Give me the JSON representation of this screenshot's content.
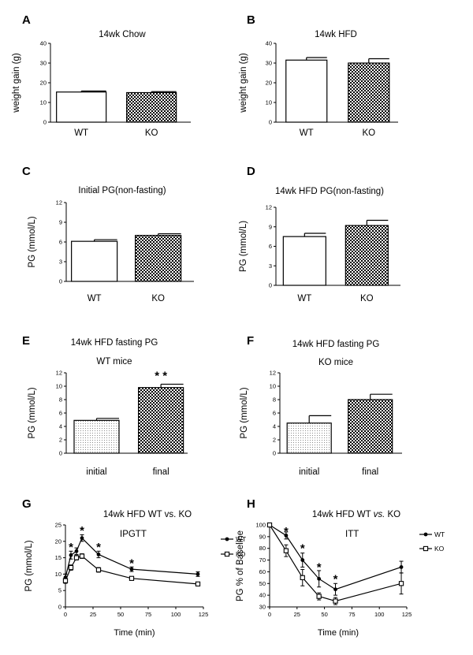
{
  "colors": {
    "axis": "#000000",
    "bar_outline": "#000000",
    "wt_fill": "#ffffff",
    "ko_fill_pattern": "checker",
    "initial_fill_pattern": "dots"
  },
  "chart_data": [
    {
      "panel": "A",
      "type": "bar",
      "title": "14wk Chow",
      "xlabel": "",
      "ylabel": "weight gain (g)",
      "categories": [
        "WT",
        "KO"
      ],
      "values": [
        15.3,
        15.0
      ],
      "errors": [
        0.5,
        0.5
      ],
      "fills": [
        "white",
        "checker"
      ],
      "ylim": [
        0,
        40
      ],
      "yticks": [
        0,
        10,
        20,
        30,
        40
      ],
      "annotations": []
    },
    {
      "panel": "B",
      "type": "bar",
      "title": "14wk HFD",
      "xlabel": "",
      "ylabel": "weight gain (g)",
      "categories": [
        "WT",
        "KO"
      ],
      "values": [
        31.5,
        30.0
      ],
      "errors": [
        1.3,
        2.2
      ],
      "fills": [
        "white",
        "checker"
      ],
      "ylim": [
        0,
        40
      ],
      "yticks": [
        0,
        10,
        20,
        30,
        40
      ],
      "annotations": []
    },
    {
      "panel": "C",
      "type": "bar",
      "title": "Initial PG(non-fasting)",
      "xlabel": "",
      "ylabel": "PG (mmol/L)",
      "categories": [
        "WT",
        "KO"
      ],
      "values": [
        6.1,
        7.0
      ],
      "errors": [
        0.25,
        0.25
      ],
      "fills": [
        "white",
        "checker"
      ],
      "ylim": [
        0,
        12
      ],
      "yticks": [
        0,
        3,
        6,
        9,
        12
      ],
      "annotations": []
    },
    {
      "panel": "D",
      "type": "bar",
      "title": "14wk HFD PG(non-fasting)",
      "xlabel": "",
      "ylabel": "PG (mmol/L)",
      "categories": [
        "WT",
        "KO"
      ],
      "values": [
        7.5,
        9.2
      ],
      "errors": [
        0.5,
        0.8
      ],
      "fills": [
        "white",
        "checker"
      ],
      "ylim": [
        0,
        12
      ],
      "yticks": [
        0,
        3,
        6,
        9,
        12
      ],
      "annotations": []
    },
    {
      "panel": "E",
      "type": "bar",
      "title": "14wk HFD fasting PG",
      "subtitle": "WT mice",
      "xlabel": "",
      "ylabel": "PG (mmol/L)",
      "categories": [
        "initial",
        "final"
      ],
      "values": [
        4.9,
        9.8
      ],
      "errors": [
        0.3,
        0.5
      ],
      "fills": [
        "dots",
        "checker"
      ],
      "ylim": [
        0,
        12
      ],
      "yticks": [
        0,
        2,
        4,
        6,
        8,
        10,
        12
      ],
      "annotations": [
        {
          "text": "* *",
          "category": "final"
        }
      ]
    },
    {
      "panel": "F",
      "type": "bar",
      "title": "14wk HFD fasting PG",
      "subtitle": "KO  mice",
      "xlabel": "",
      "ylabel": "PG (mmol/L)",
      "categories": [
        "initial",
        "final"
      ],
      "values": [
        4.5,
        8.0
      ],
      "errors": [
        1.1,
        0.8
      ],
      "fills": [
        "dots",
        "checker"
      ],
      "ylim": [
        0,
        12
      ],
      "yticks": [
        0,
        2,
        4,
        6,
        8,
        10,
        12
      ],
      "annotations": []
    },
    {
      "panel": "G",
      "type": "line",
      "title": "14wk HFD WT vs. KO",
      "title_italic": "",
      "inner_label": "IPGTT",
      "xlabel": "Time (min)",
      "ylabel": "PG (mmol/L)",
      "xlim": [
        0,
        125
      ],
      "xticks": [
        0,
        25,
        50,
        75,
        100,
        125
      ],
      "ylim": [
        0,
        25
      ],
      "yticks": [
        0,
        5,
        10,
        15,
        20,
        25
      ],
      "series": [
        {
          "name": "WT",
          "marker": "circle",
          "x": [
            0,
            5,
            10,
            15,
            30,
            60,
            120
          ],
          "y": [
            9.0,
            15.8,
            17.0,
            21.0,
            16.0,
            11.5,
            10.0
          ],
          "err": [
            1.0,
            1.2,
            1.0,
            1.0,
            1.0,
            0.7,
            0.7
          ]
        },
        {
          "name": "KO",
          "marker": "square",
          "x": [
            0,
            5,
            10,
            15,
            30,
            60,
            120
          ],
          "y": [
            8.0,
            12.0,
            15.0,
            15.5,
            11.3,
            8.7,
            7.0
          ],
          "err": [
            0.8,
            0.8,
            0.7,
            0.7,
            0.7,
            0.5,
            0.4
          ]
        }
      ],
      "stars": [
        {
          "x": 5,
          "y": 18.3
        },
        {
          "x": 15,
          "y": 23.3
        },
        {
          "x": 30,
          "y": 18.3
        },
        {
          "x": 60,
          "y": 13.3
        }
      ],
      "star_text": "*"
    },
    {
      "panel": "H",
      "type": "line",
      "title": "14wk HFD WT ",
      "title_italic": "vs.",
      "title_tail": " KO",
      "inner_label": "ITT",
      "xlabel": "Time (min)",
      "ylabel": "PG % of Baseline",
      "xlim": [
        0,
        125
      ],
      "xticks": [
        0,
        25,
        50,
        75,
        100,
        125
      ],
      "ylim": [
        30,
        100
      ],
      "yticks": [
        30,
        40,
        50,
        60,
        70,
        80,
        90,
        100
      ],
      "series": [
        {
          "name": "WT",
          "marker": "circle",
          "x": [
            0,
            15,
            30,
            45,
            60,
            120
          ],
          "y": [
            100,
            91,
            70,
            54,
            45,
            64
          ],
          "err": [
            0,
            3,
            6,
            7,
            5,
            5
          ]
        },
        {
          "name": "KO",
          "marker": "square",
          "x": [
            0,
            15,
            30,
            45,
            60,
            120
          ],
          "y": [
            100,
            78,
            55,
            39,
            35,
            50
          ],
          "err": [
            0,
            5,
            7,
            3,
            3,
            9
          ]
        }
      ],
      "stars": [
        {
          "x": 15,
          "y": 94.5
        },
        {
          "x": 30,
          "y": 80
        },
        {
          "x": 45,
          "y": 64
        },
        {
          "x": 60,
          "y": 54
        }
      ],
      "star_text": "*"
    }
  ]
}
